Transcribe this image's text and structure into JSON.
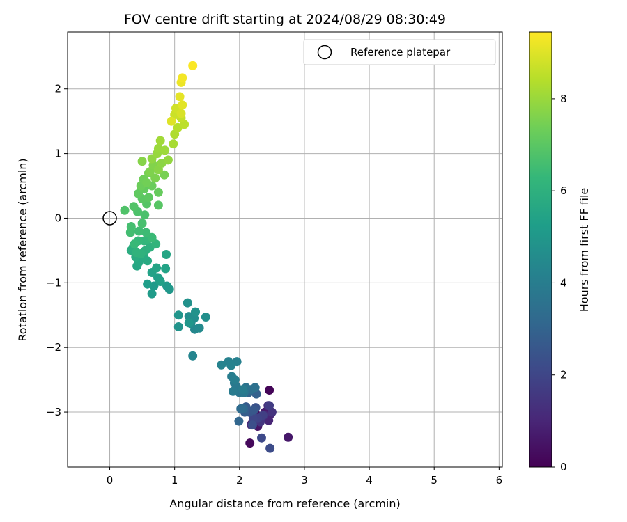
{
  "chart_data": {
    "type": "scatter",
    "title": "FOV centre drift starting at 2024/08/29 08:30:49",
    "xlabel": "Angular distance from reference (arcmin)",
    "ylabel": "Rotation from reference (arcmin)",
    "xlim": [
      -0.65,
      6.05
    ],
    "ylim": [
      -3.85,
      2.88
    ],
    "x_ticks": [
      0,
      1,
      2,
      3,
      4,
      5,
      6
    ],
    "y_ticks": [
      -3,
      -2,
      -1,
      0,
      1,
      2
    ],
    "x_tick_labels": [
      "0",
      "1",
      "2",
      "3",
      "4",
      "5",
      "6"
    ],
    "y_tick_labels": [
      "−3",
      "−2",
      "−1",
      "0",
      "1",
      "2"
    ],
    "grid": true,
    "legend": {
      "position": "top-right",
      "entries": [
        {
          "label": "Reference platepar",
          "marker": "open-circle"
        }
      ]
    },
    "reference_point": {
      "x": 0,
      "y": 0
    },
    "colorbar": {
      "label": "Hours from first FF file",
      "colormap": "viridis",
      "range": [
        0,
        9.45
      ],
      "ticks": [
        0,
        2,
        4,
        6,
        8
      ],
      "tick_labels": [
        "0",
        "2",
        "4",
        "6",
        "8"
      ]
    },
    "colormap_stops": [
      "#440154",
      "#482878",
      "#3e4989",
      "#31688e",
      "#26828e",
      "#1f9e89",
      "#35b779",
      "#6ece58",
      "#b5de2b",
      "#fde725"
    ],
    "points": [
      [
        2.46,
        -2.66,
        0.1
      ],
      [
        2.16,
        -3.48,
        0.2
      ],
      [
        2.27,
        -3.05,
        0.3
      ],
      [
        2.19,
        -3.18,
        0.4
      ],
      [
        2.28,
        -3.22,
        0.5
      ],
      [
        2.75,
        -3.39,
        0.6
      ],
      [
        2.39,
        -3.0,
        0.7
      ],
      [
        2.3,
        -3.1,
        0.8
      ],
      [
        2.48,
        -3.03,
        0.9
      ],
      [
        2.45,
        -3.13,
        1.0
      ],
      [
        2.18,
        -3.2,
        1.1
      ],
      [
        2.38,
        -3.05,
        1.2
      ],
      [
        2.44,
        -2.9,
        1.3
      ],
      [
        2.5,
        -3.0,
        1.4
      ],
      [
        2.32,
        -3.15,
        1.5
      ],
      [
        2.21,
        -3.05,
        1.6
      ],
      [
        2.46,
        -2.9,
        1.7
      ],
      [
        2.36,
        -3.05,
        1.8
      ],
      [
        2.28,
        -3.1,
        1.9
      ],
      [
        2.21,
        -3.1,
        2.0
      ],
      [
        2.34,
        -3.4,
        2.1
      ],
      [
        2.47,
        -3.56,
        2.2
      ],
      [
        2.2,
        -3.2,
        2.3
      ],
      [
        2.25,
        -2.93,
        2.4
      ],
      [
        2.15,
        -3.0,
        2.5
      ],
      [
        2.22,
        -2.97,
        2.6
      ],
      [
        2.1,
        -2.92,
        2.7
      ],
      [
        2.08,
        -3.0,
        2.8
      ],
      [
        2.26,
        -2.72,
        2.9
      ],
      [
        2.14,
        -2.7,
        3.0
      ],
      [
        1.99,
        -3.14,
        3.1
      ],
      [
        2.06,
        -2.95,
        3.2
      ],
      [
        2.02,
        -2.95,
        3.3
      ],
      [
        2.18,
        -2.65,
        3.4
      ],
      [
        2.24,
        -2.62,
        3.5
      ],
      [
        2.1,
        -2.62,
        3.6
      ],
      [
        2.0,
        -2.7,
        3.7
      ],
      [
        2.07,
        -2.7,
        3.75
      ],
      [
        1.95,
        -2.6,
        3.8
      ],
      [
        1.92,
        -2.55,
        3.85
      ],
      [
        1.9,
        -2.68,
        3.9
      ],
      [
        2.05,
        -2.65,
        3.95
      ],
      [
        1.88,
        -2.45,
        4.0
      ],
      [
        1.93,
        -2.5,
        4.05
      ],
      [
        1.96,
        -2.22,
        4.1
      ],
      [
        1.83,
        -2.22,
        4.15
      ],
      [
        1.87,
        -2.28,
        4.2
      ],
      [
        1.72,
        -2.27,
        4.25
      ],
      [
        1.28,
        -2.13,
        4.3
      ],
      [
        1.31,
        -1.72,
        4.4
      ],
      [
        1.38,
        -1.7,
        4.5
      ],
      [
        1.25,
        -1.63,
        4.55
      ],
      [
        1.22,
        -1.52,
        4.6
      ],
      [
        1.3,
        -1.55,
        4.65
      ],
      [
        1.48,
        -1.53,
        4.7
      ],
      [
        1.2,
        -1.31,
        4.75
      ],
      [
        1.32,
        -1.45,
        4.8
      ],
      [
        1.06,
        -1.68,
        4.85
      ],
      [
        1.06,
        -1.5,
        4.9
      ],
      [
        1.22,
        -1.62,
        4.95
      ],
      [
        0.92,
        -1.1,
        5.0
      ],
      [
        0.88,
        -1.05,
        5.05
      ],
      [
        0.68,
        -1.05,
        5.1
      ],
      [
        0.65,
        -1.17,
        5.15
      ],
      [
        0.77,
        -0.96,
        5.2
      ],
      [
        0.58,
        -1.02,
        5.25
      ],
      [
        0.74,
        -0.92,
        5.3
      ],
      [
        0.78,
        -0.98,
        5.35
      ],
      [
        0.65,
        -0.84,
        5.4
      ],
      [
        0.86,
        -0.78,
        5.45
      ],
      [
        0.72,
        -0.77,
        5.5
      ],
      [
        0.87,
        -0.56,
        5.55
      ],
      [
        0.42,
        -0.74,
        5.6
      ],
      [
        0.45,
        -0.68,
        5.65
      ],
      [
        0.58,
        -0.66,
        5.7
      ],
      [
        0.52,
        -0.59,
        5.75
      ],
      [
        0.4,
        -0.6,
        5.8
      ],
      [
        0.33,
        -0.5,
        5.85
      ],
      [
        0.36,
        -0.45,
        5.9
      ],
      [
        0.55,
        -0.5,
        5.95
      ],
      [
        0.62,
        -0.45,
        6.0
      ],
      [
        0.48,
        -0.55,
        6.05
      ],
      [
        0.41,
        -0.53,
        6.1
      ],
      [
        0.71,
        -0.4,
        6.15
      ],
      [
        0.53,
        -0.35,
        6.2
      ],
      [
        0.6,
        -0.32,
        6.25
      ],
      [
        0.44,
        -0.35,
        6.3
      ],
      [
        0.38,
        -0.4,
        6.35
      ],
      [
        0.65,
        -0.3,
        6.4
      ],
      [
        0.56,
        -0.22,
        6.45
      ],
      [
        0.45,
        -0.2,
        6.5
      ],
      [
        0.32,
        -0.22,
        6.55
      ],
      [
        0.33,
        -0.13,
        6.6
      ],
      [
        0.5,
        -0.08,
        6.65
      ],
      [
        0.54,
        0.05,
        6.7
      ],
      [
        0.43,
        0.1,
        6.75
      ],
      [
        0.23,
        0.12,
        6.8
      ],
      [
        0.37,
        0.18,
        6.85
      ],
      [
        0.57,
        0.22,
        6.9
      ],
      [
        0.75,
        0.2,
        6.95
      ],
      [
        0.5,
        0.3,
        7.0
      ],
      [
        0.6,
        0.32,
        7.05
      ],
      [
        0.44,
        0.38,
        7.1
      ],
      [
        0.53,
        0.45,
        7.15
      ],
      [
        0.75,
        0.4,
        7.2
      ],
      [
        0.65,
        0.5,
        7.25
      ],
      [
        0.48,
        0.5,
        7.3
      ],
      [
        0.52,
        0.6,
        7.35
      ],
      [
        0.57,
        0.55,
        7.4
      ],
      [
        0.6,
        0.7,
        7.45
      ],
      [
        0.84,
        0.67,
        7.5
      ],
      [
        0.7,
        0.62,
        7.55
      ],
      [
        0.62,
        0.72,
        7.6
      ],
      [
        0.67,
        0.82,
        7.65
      ],
      [
        0.5,
        0.88,
        7.7
      ],
      [
        0.75,
        0.75,
        7.75
      ],
      [
        0.8,
        0.85,
        7.8
      ],
      [
        0.65,
        0.92,
        7.85
      ],
      [
        0.9,
        0.9,
        7.9
      ],
      [
        0.73,
        1.0,
        7.95
      ],
      [
        0.75,
        1.08,
        8.0
      ],
      [
        0.85,
        1.05,
        8.05
      ],
      [
        0.78,
        1.2,
        8.1
      ],
      [
        0.98,
        1.15,
        8.2
      ],
      [
        1.0,
        1.3,
        8.3
      ],
      [
        1.05,
        1.4,
        8.4
      ],
      [
        1.15,
        1.45,
        8.5
      ],
      [
        1.1,
        1.55,
        8.6
      ],
      [
        1.0,
        1.6,
        8.7
      ],
      [
        1.02,
        1.7,
        8.8
      ],
      [
        1.1,
        1.62,
        8.9
      ],
      [
        0.95,
        1.5,
        9.0
      ],
      [
        1.12,
        1.75,
        9.05
      ],
      [
        1.08,
        1.88,
        9.1
      ],
      [
        1.1,
        2.1,
        9.2
      ],
      [
        1.12,
        2.17,
        9.3
      ],
      [
        1.28,
        2.36,
        9.4
      ]
    ]
  }
}
